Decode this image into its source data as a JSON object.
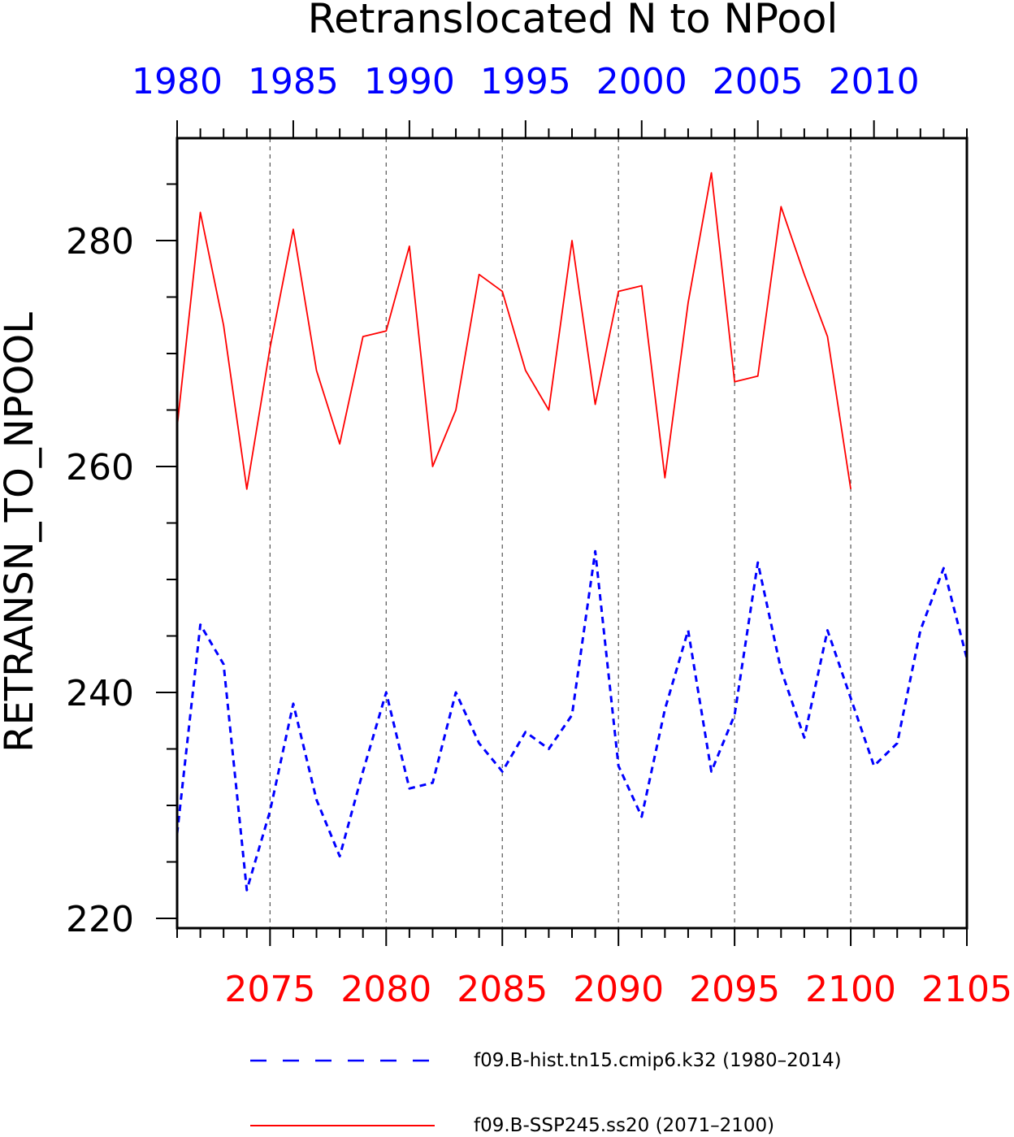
{
  "chart_data": {
    "type": "line",
    "title": "Retranslocated N to NPool",
    "ylabel": "RETRANSN_TO_NPOOL",
    "ylim": [
      220,
      290
    ],
    "yticks_major": [
      220,
      240,
      260,
      280
    ],
    "yticks_minor": [
      225,
      230,
      235,
      245,
      250,
      255,
      265,
      270,
      275,
      285
    ],
    "top_axis": {
      "color": "#0000ff",
      "range": [
        1980,
        2014
      ],
      "tick_labels": [
        "1980",
        "1985",
        "1990",
        "1995",
        "2000",
        "2005",
        "2010"
      ]
    },
    "bottom_axis": {
      "color": "#ff0000",
      "range": [
        2071,
        2105
      ],
      "tick_labels": [
        "2075",
        "2080",
        "2085",
        "2090",
        "2095",
        "2100",
        "2105"
      ]
    },
    "grid": "vertical dashed at bottom-axis major ticks",
    "series": [
      {
        "name": "f09.B-hist.tn15.cmip6.k32 (1980–2014)",
        "color": "#0000ff",
        "style": "dashed",
        "axis": "top",
        "x": [
          1980,
          1981,
          1982,
          1983,
          1984,
          1985,
          1986,
          1987,
          1988,
          1989,
          1990,
          1991,
          1992,
          1993,
          1994,
          1995,
          1996,
          1997,
          1998,
          1999,
          2000,
          2001,
          2002,
          2003,
          2004,
          2005,
          2006,
          2007,
          2008,
          2009,
          2010,
          2011,
          2012,
          2013,
          2014
        ],
        "values": [
          227.5,
          246.0,
          242.5,
          222.5,
          229.5,
          239.0,
          230.5,
          225.5,
          233.0,
          240.0,
          231.5,
          232.0,
          240.0,
          235.5,
          233.0,
          236.5,
          235.0,
          238.0,
          252.5,
          233.5,
          229.0,
          238.5,
          245.5,
          233.0,
          238.0,
          251.5,
          242.0,
          236.0,
          245.5,
          239.5,
          233.5,
          235.5,
          245.5,
          251.0,
          243.0
        ]
      },
      {
        "name": "f09.B-SSP245.ss20 (2071–2100)",
        "color": "#ff0000",
        "style": "solid",
        "axis": "bottom",
        "x": [
          2071,
          2072,
          2073,
          2074,
          2075,
          2076,
          2077,
          2078,
          2079,
          2080,
          2081,
          2082,
          2083,
          2084,
          2085,
          2086,
          2087,
          2088,
          2089,
          2090,
          2091,
          2092,
          2093,
          2094,
          2095,
          2096,
          2097,
          2098,
          2099,
          2100
        ],
        "values": [
          263.5,
          282.5,
          272.5,
          258.0,
          270.5,
          281.0,
          268.5,
          262.0,
          271.5,
          272.0,
          279.5,
          260.0,
          265.0,
          277.0,
          275.5,
          268.5,
          265.0,
          280.0,
          265.5,
          275.5,
          276.0,
          259.0,
          274.5,
          286.0,
          267.5,
          268.0,
          283.0,
          277.0,
          271.5,
          258.0
        ]
      }
    ]
  }
}
